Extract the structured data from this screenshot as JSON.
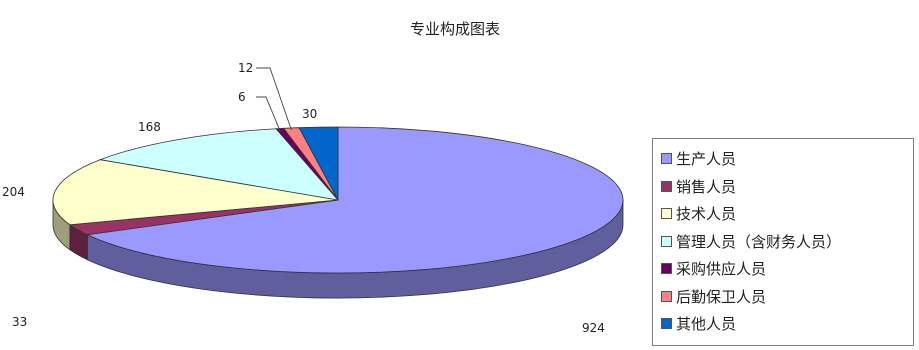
{
  "chart_data": {
    "type": "pie",
    "title": "专业构成图表",
    "categories": [
      "生产人员",
      "销售人员",
      "技术人员",
      "管理人员（含财务人员）",
      "采购供应人员",
      "后勤保卫人员",
      "其他人员"
    ],
    "values": [
      924,
      33,
      204,
      168,
      6,
      12,
      30
    ],
    "data_labels": [
      "924",
      "33",
      "204",
      "168",
      "6",
      "12",
      "30"
    ],
    "colors": [
      "#9999ff",
      "#993366",
      "#ffffcc",
      "#ccffff",
      "#660066",
      "#ff8080",
      "#0066cc"
    ],
    "legend_position": "right",
    "style": "3d-pie"
  }
}
